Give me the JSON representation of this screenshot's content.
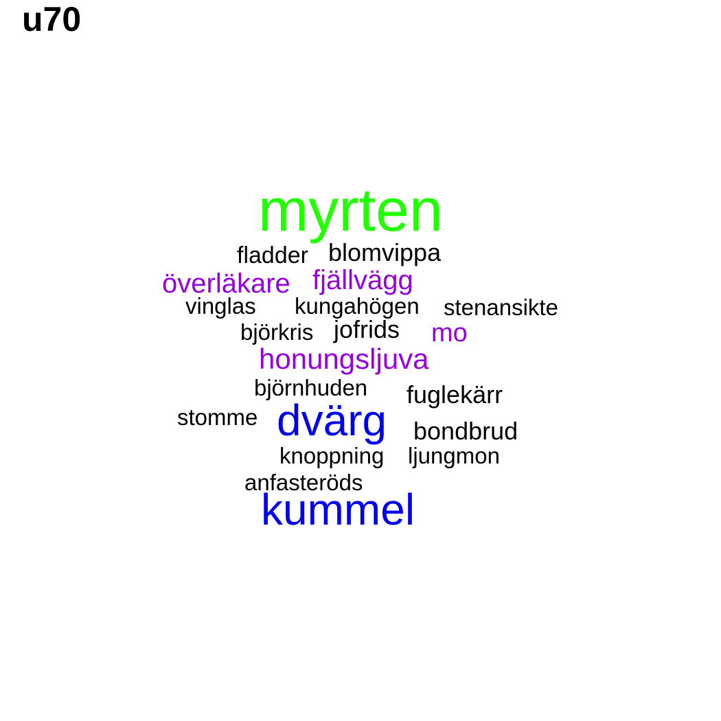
{
  "title": "u70",
  "colors": {
    "green": "#22ff00",
    "purple": "#9400e0",
    "blue": "#0000ee",
    "black": "#000000"
  },
  "words": [
    {
      "text": "myrten",
      "color": "green"
    },
    {
      "text": "fladder",
      "color": "black"
    },
    {
      "text": "blomvippa",
      "color": "black"
    },
    {
      "text": "överläkare",
      "color": "purple"
    },
    {
      "text": "fjällvägg",
      "color": "purple"
    },
    {
      "text": "vinglas",
      "color": "black"
    },
    {
      "text": "kungahögen",
      "color": "black"
    },
    {
      "text": "stenansikte",
      "color": "black"
    },
    {
      "text": "björkris",
      "color": "black"
    },
    {
      "text": "jofrids",
      "color": "black"
    },
    {
      "text": "mo",
      "color": "purple"
    },
    {
      "text": "honungsljuva",
      "color": "purple"
    },
    {
      "text": "björnhuden",
      "color": "black"
    },
    {
      "text": "fuglekärr",
      "color": "black"
    },
    {
      "text": "stomme",
      "color": "black"
    },
    {
      "text": "dvärg",
      "color": "blue"
    },
    {
      "text": "bondbrud",
      "color": "black"
    },
    {
      "text": "knoppning",
      "color": "black"
    },
    {
      "text": "ljungmon",
      "color": "black"
    },
    {
      "text": "anfasteröds",
      "color": "black"
    },
    {
      "text": "kummel",
      "color": "blue"
    }
  ]
}
